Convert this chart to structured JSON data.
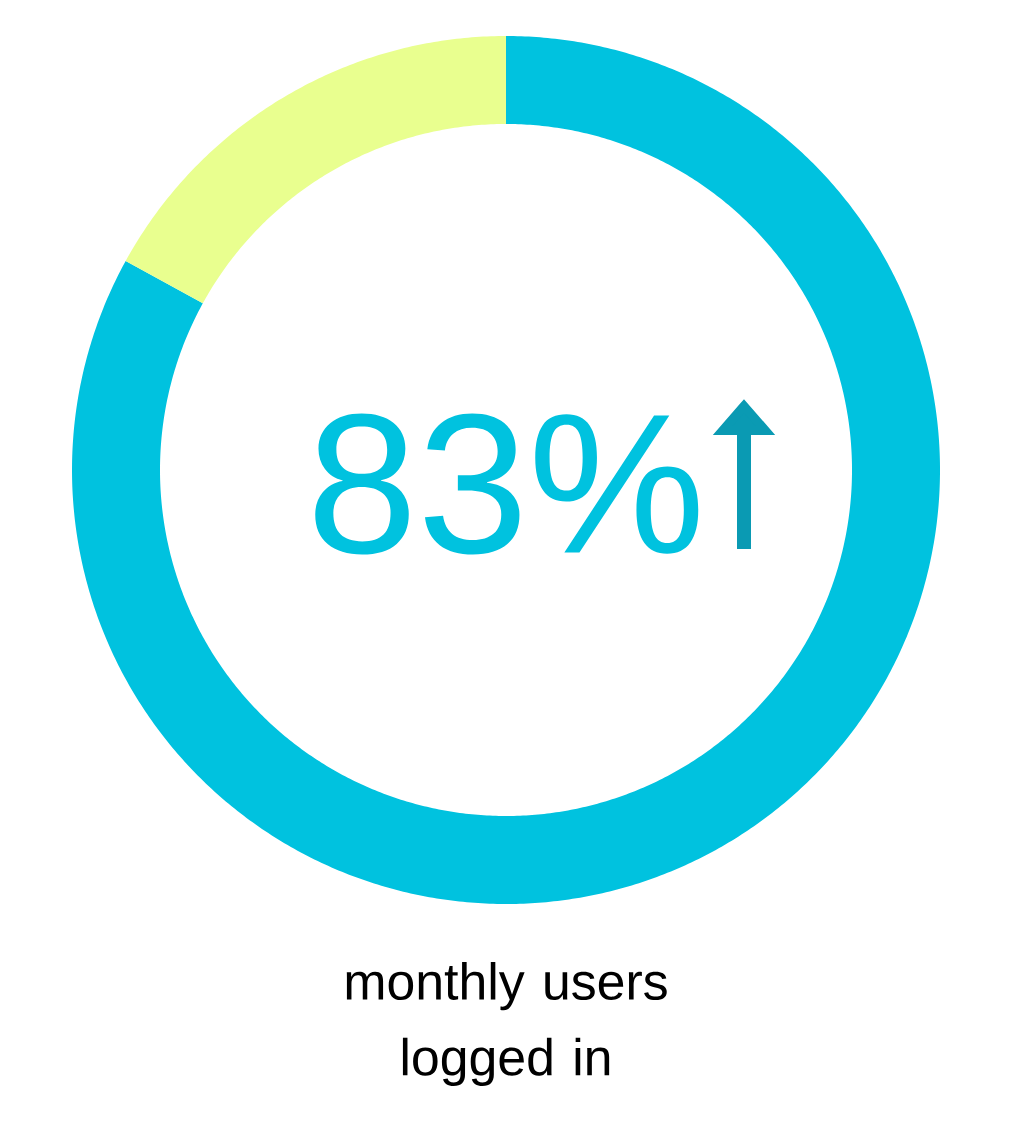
{
  "chart_data": {
    "type": "donut",
    "categories": [
      null,
      null
    ],
    "values": [
      83,
      17
    ],
    "colors": [
      "#00c2df",
      "#e9ff8f"
    ],
    "value_labels": [
      "83%",
      null
    ],
    "annotations": [
      "monthly users logged in"
    ]
  }
}
